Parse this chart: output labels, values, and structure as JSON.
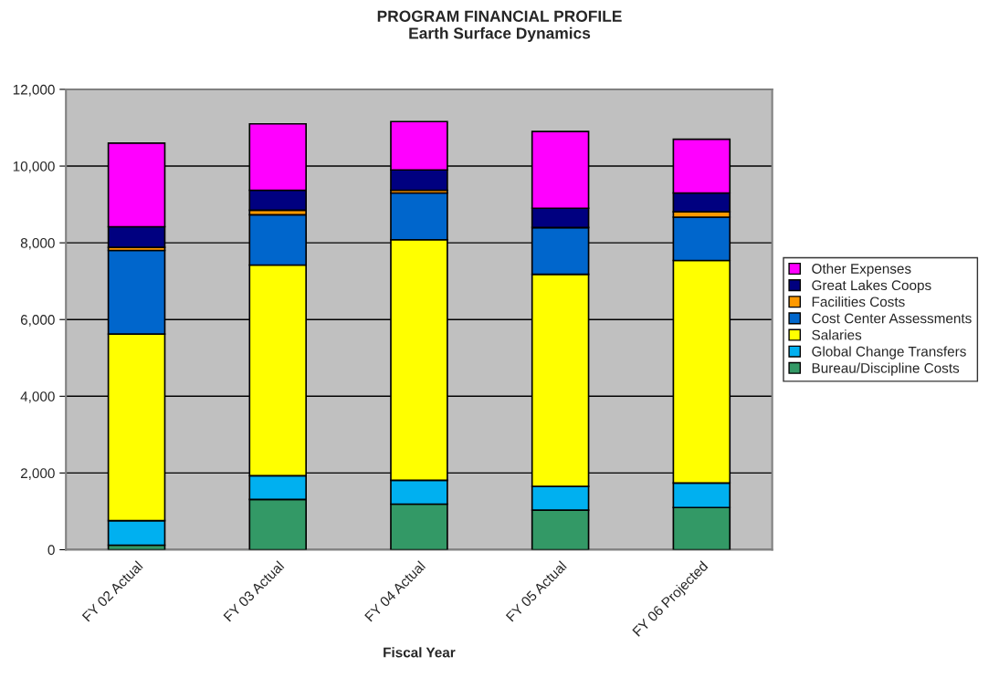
{
  "chart_data": {
    "type": "bar",
    "title": "PROGRAM FINANCIAL PROFILE",
    "subtitle": "Earth Surface Dynamics",
    "xlabel": "Fiscal Year",
    "categories": [
      "FY 02 Actual",
      "FY 03 Actual",
      "FY 04 Actual",
      "FY 05 Actual",
      "FY 06 Projected"
    ],
    "stacked": true,
    "ylim": [
      0,
      12000
    ],
    "yticks": [
      {
        "value": 0,
        "label": "0"
      },
      {
        "value": 2000,
        "label": "2,000"
      },
      {
        "value": 4000,
        "label": "4,000"
      },
      {
        "value": 6000,
        "label": "6,000"
      },
      {
        "value": 8000,
        "label": "8,000"
      },
      {
        "value": 10000,
        "label": "10,000"
      },
      {
        "value": 12000,
        "label": "12,000"
      }
    ],
    "grid": "y",
    "legend": "right",
    "series": [
      {
        "name": "Bureau/Discipline Costs",
        "color": "#339966",
        "values": [
          120,
          1310,
          1190,
          1030,
          1100
        ]
      },
      {
        "name": "Global Change Transfers",
        "color": "#00b0f0",
        "values": [
          640,
          620,
          620,
          620,
          640
        ]
      },
      {
        "name": "Salaries",
        "color": "#ffff00",
        "values": [
          4860,
          5490,
          6270,
          5530,
          5800
        ]
      },
      {
        "name": "Cost Center Assessments",
        "color": "#0066cc",
        "values": [
          2180,
          1310,
          1220,
          1220,
          1130
        ]
      },
      {
        "name": "Facilities Costs",
        "color": "#ff9900",
        "values": [
          80,
          120,
          70,
          0,
          140
        ]
      },
      {
        "name": "Great Lakes Coops",
        "color": "#000080",
        "values": [
          540,
          520,
          530,
          500,
          490
        ]
      },
      {
        "name": "Other Expenses",
        "color": "#ff00ff",
        "values": [
          2180,
          1730,
          1260,
          2000,
          1400
        ]
      }
    ]
  }
}
